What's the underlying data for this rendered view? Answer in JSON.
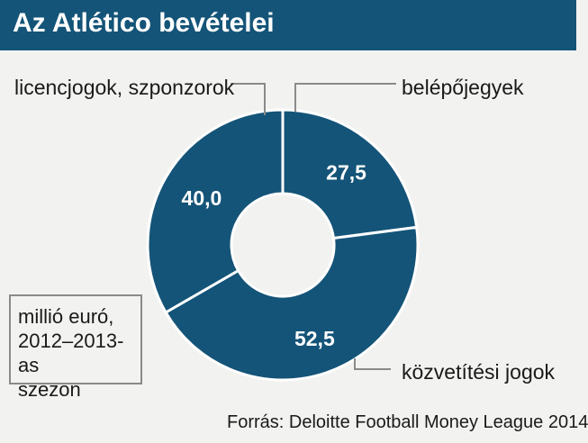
{
  "chart_data": {
    "type": "pie",
    "title": "Az Atlético bevételei",
    "slices": [
      {
        "label": "belépőjegyek",
        "value": 27.5,
        "value_label": "27,5",
        "color": "#145478"
      },
      {
        "label": "közvetítési jogok",
        "value": 52.5,
        "value_label": "52,5",
        "color": "#145478"
      },
      {
        "label": "licencjogok, szponzorok",
        "value": 40.0,
        "value_label": "40,0",
        "color": "#145478"
      }
    ],
    "donut": true,
    "unit_note": [
      "millió euró,",
      "2012–2013-as",
      "szezon"
    ],
    "source": "Forrás: Deloitte Football Money League 2014"
  },
  "colors": {
    "header": "#145478",
    "slice": "#145478",
    "separator": "#ffffff",
    "background": "#f2f2f0"
  }
}
